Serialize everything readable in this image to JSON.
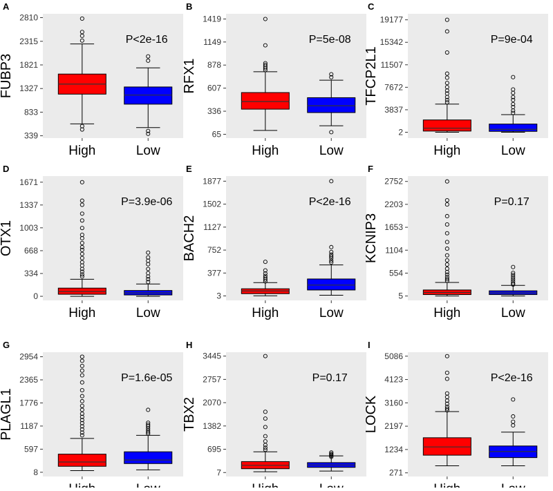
{
  "chart_data": [
    {
      "panel": "A",
      "type": "boxplot",
      "ylabel": "FUBP3",
      "pvalue": "P<2e-16",
      "categories": [
        "High",
        "Low"
      ],
      "yticks": [
        339,
        833,
        1327,
        1821,
        2315,
        2810
      ],
      "ylim": [
        290,
        2890
      ],
      "series": [
        {
          "name": "High",
          "color": "#ff0000",
          "whisker_low": 588,
          "q1": 1210,
          "median": 1420,
          "q3": 1630,
          "whisker_high": 2260,
          "outliers": [
            2790,
            2510,
            2430,
            2330,
            470,
            540
          ]
        },
        {
          "name": "Low",
          "color": "#0000ff",
          "whisker_low": 510,
          "q1": 1000,
          "median": 1190,
          "q3": 1360,
          "whisker_high": 1760,
          "outliers": [
            2000,
            1910,
            440,
            380
          ]
        }
      ]
    },
    {
      "panel": "B",
      "type": "boxplot",
      "ylabel": "RFX1",
      "pvalue": "P=5e-08",
      "categories": [
        "High",
        "Low"
      ],
      "yticks": [
        65,
        336,
        607,
        878,
        1149,
        1419
      ],
      "ylim": [
        20,
        1480
      ],
      "series": [
        {
          "name": "High",
          "color": "#ff0000",
          "whisker_low": 110,
          "q1": 360,
          "median": 450,
          "q3": 555,
          "whisker_high": 800,
          "outliers": [
            1419,
            1110,
            900,
            880,
            860,
            840,
            820
          ]
        },
        {
          "name": "Low",
          "color": "#0000ff",
          "whisker_low": 165,
          "q1": 320,
          "median": 400,
          "q3": 495,
          "whisker_high": 700,
          "outliers": [
            770,
            735,
            90
          ]
        }
      ]
    },
    {
      "panel": "C",
      "type": "boxplot",
      "ylabel": "TFCP2L1",
      "pvalue": "P=9e-04",
      "categories": [
        "High",
        "Low"
      ],
      "yticks": [
        2,
        3837,
        7672,
        11507,
        15342,
        19177
      ],
      "ylim": [
        -1000,
        20200
      ],
      "series": [
        {
          "name": "High",
          "color": "#ff0000",
          "whisker_low": 5,
          "q1": 200,
          "median": 700,
          "q3": 2100,
          "whisker_high": 4800,
          "outliers": [
            19177,
            17200,
            13600,
            10000,
            9300,
            8400,
            7700,
            7100,
            6600,
            6000,
            5500,
            5100
          ]
        },
        {
          "name": "Low",
          "color": "#0000ff",
          "whisker_low": 5,
          "q1": 150,
          "median": 500,
          "q3": 1400,
          "whisker_high": 3000,
          "outliers": [
            9400,
            7300,
            6700,
            6000,
            5500,
            4800,
            4300,
            3700,
            3300
          ]
        }
      ]
    },
    {
      "panel": "D",
      "type": "boxplot",
      "ylabel": "OTX1",
      "pvalue": "P=3.9e-06",
      "categories": [
        "High",
        "Low"
      ],
      "yticks": [
        0,
        334,
        668,
        1003,
        1337,
        1671
      ],
      "ylim": [
        -60,
        1760
      ],
      "series": [
        {
          "name": "High",
          "color": "#ff0000",
          "whisker_low": 0,
          "q1": 30,
          "median": 70,
          "q3": 120,
          "whisker_high": 250,
          "outliers": [
            1671,
            1400,
            1340,
            1210,
            1110,
            1000,
            900,
            850,
            780,
            720,
            680,
            620,
            560,
            500,
            450,
            400,
            360,
            320,
            290
          ]
        },
        {
          "name": "Low",
          "color": "#0000ff",
          "whisker_low": 0,
          "q1": 20,
          "median": 50,
          "q3": 85,
          "whisker_high": 180,
          "outliers": [
            640,
            570,
            520,
            470,
            400,
            340,
            290,
            250,
            210
          ]
        }
      ]
    },
    {
      "panel": "E",
      "type": "boxplot",
      "ylabel": "BACH2",
      "pvalue": "P<2e-16",
      "categories": [
        "High",
        "Low"
      ],
      "yticks": [
        3,
        377,
        752,
        1127,
        1502,
        1877
      ],
      "ylim": [
        -70,
        1960
      ],
      "series": [
        {
          "name": "High",
          "color": "#ff0000",
          "whisker_low": 5,
          "q1": 40,
          "median": 85,
          "q3": 120,
          "whisker_high": 220,
          "outliers": [
            560,
            420,
            370,
            330,
            300,
            270,
            240
          ]
        },
        {
          "name": "Low",
          "color": "#0000ff",
          "whisker_low": 15,
          "q1": 100,
          "median": 180,
          "q3": 280,
          "whisker_high": 510,
          "outliers": [
            1877,
            800,
            720,
            680,
            650,
            620,
            580,
            550
          ]
        }
      ]
    },
    {
      "panel": "F",
      "type": "boxplot",
      "ylabel": "KCNIP3",
      "pvalue": "P=0.17",
      "categories": [
        "High",
        "Low"
      ],
      "yticks": [
        5,
        554,
        1104,
        1653,
        2203,
        2752
      ],
      "ylim": [
        -100,
        2880
      ],
      "series": [
        {
          "name": "High",
          "color": "#ff0000",
          "whisker_low": 5,
          "q1": 40,
          "median": 90,
          "q3": 150,
          "whisker_high": 330,
          "outliers": [
            2752,
            2300,
            2200,
            1920,
            1720,
            1510,
            1300,
            1140,
            980,
            860,
            760,
            660,
            580,
            520,
            460,
            410,
            370
          ]
        },
        {
          "name": "Low",
          "color": "#0000ff",
          "whisker_low": 5,
          "q1": 40,
          "median": 80,
          "q3": 130,
          "whisker_high": 260,
          "outliers": [
            700,
            560,
            510,
            460,
            410,
            360,
            310,
            280
          ]
        }
      ]
    },
    {
      "panel": "G",
      "type": "boxplot",
      "ylabel": "PLAGL1",
      "pvalue": "P=1.6e-05",
      "categories": [
        "High",
        "Low"
      ],
      "yticks": [
        8,
        597,
        1187,
        1776,
        2365,
        2954
      ],
      "ylim": [
        -100,
        3070
      ],
      "series": [
        {
          "name": "High",
          "color": "#ff0000",
          "whisker_low": 50,
          "q1": 160,
          "median": 270,
          "q3": 470,
          "whisker_high": 870,
          "outliers": [
            2954,
            2850,
            2720,
            2600,
            2480,
            2300,
            2100,
            1950,
            1820,
            1700,
            1600,
            1500,
            1420,
            1340,
            1260,
            1180,
            1100,
            1020,
            950
          ]
        },
        {
          "name": "Low",
          "color": "#0000ff",
          "whisker_low": 70,
          "q1": 230,
          "median": 320,
          "q3": 530,
          "whisker_high": 950,
          "outliers": [
            1600,
            1270,
            1220,
            1180,
            1130,
            1080,
            1030,
            990
          ]
        }
      ]
    },
    {
      "panel": "H",
      "type": "boxplot",
      "ylabel": "TBX2",
      "pvalue": "P=0.17",
      "categories": [
        "High",
        "Low"
      ],
      "yticks": [
        7,
        695,
        1382,
        2070,
        2757,
        3445
      ],
      "ylim": [
        -110,
        3560
      ],
      "series": [
        {
          "name": "High",
          "color": "#ff0000",
          "whisker_low": 30,
          "q1": 120,
          "median": 220,
          "q3": 330,
          "whisker_high": 620,
          "outliers": [
            3445,
            1800,
            1600,
            1350,
            1080,
            930,
            820,
            740,
            680
          ]
        },
        {
          "name": "Low",
          "color": "#0000ff",
          "whisker_low": 50,
          "q1": 160,
          "median": 230,
          "q3": 300,
          "whisker_high": 500,
          "outliers": [
            600,
            560,
            530,
            500,
            470
          ]
        }
      ]
    },
    {
      "panel": "I",
      "type": "boxplot",
      "ylabel": "LOCK",
      "pvalue": "P<2e-16",
      "categories": [
        "High",
        "Low"
      ],
      "yticks": [
        271,
        1234,
        2197,
        3160,
        4123,
        5086
      ],
      "ylim": [
        120,
        5250
      ],
      "series": [
        {
          "name": "High",
          "color": "#ff0000",
          "whisker_low": 560,
          "q1": 1000,
          "median": 1340,
          "q3": 1720,
          "whisker_high": 2800,
          "outliers": [
            5086,
            4400,
            4150,
            3550,
            3400,
            3250,
            3120,
            3000,
            2920,
            2850
          ]
        },
        {
          "name": "Low",
          "color": "#0000ff",
          "whisker_low": 560,
          "q1": 900,
          "median": 1150,
          "q3": 1380,
          "whisker_high": 1950,
          "outliers": [
            3300,
            2600,
            2380,
            2230
          ]
        }
      ]
    }
  ]
}
